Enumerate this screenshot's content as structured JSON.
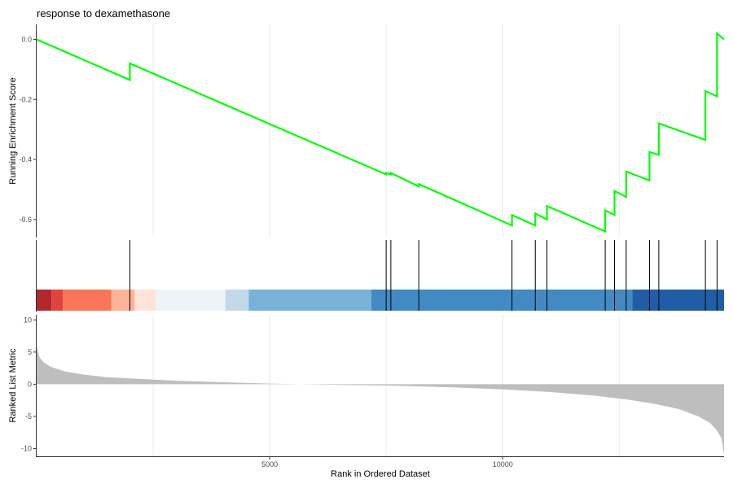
{
  "chart_data": {
    "type": "line",
    "title": "response to dexamethasone",
    "xlabel": "Rank in Ordered Dataset",
    "x_ticks": [
      5000,
      10000
    ],
    "xlim": [
      0,
      14750
    ],
    "panels": {
      "running_score": {
        "ylabel": "Running Enrichment Score",
        "ylim": [
          -0.66,
          0.05
        ],
        "y_ticks": [
          0.0,
          -0.2,
          -0.4,
          -0.6
        ],
        "y_tick_labels": [
          "0.0",
          "-0.2",
          "-0.4",
          "-0.6"
        ],
        "line_color": "#00ff00",
        "series": [
          {
            "x": [
              0,
              2000,
              2000,
              7500,
              7500,
              7600,
              7600,
              8200,
              8200,
              10200,
              10200,
              10700,
              10700,
              10950,
              10950,
              12200,
              12200,
              12400,
              12400,
              12650,
              12650,
              13150,
              13150,
              13350,
              13350,
              14350,
              14350,
              14600,
              14600,
              14750
            ],
            "y": [
              0.0,
              -0.135,
              -0.08,
              -0.45,
              -0.445,
              -0.45,
              -0.445,
              -0.49,
              -0.482,
              -0.62,
              -0.585,
              -0.62,
              -0.58,
              -0.6,
              -0.555,
              -0.64,
              -0.57,
              -0.585,
              -0.505,
              -0.525,
              -0.44,
              -0.47,
              -0.375,
              -0.385,
              -0.28,
              -0.335,
              -0.172,
              -0.19,
              0.02,
              0.0
            ]
          }
        ]
      },
      "hits": {
        "positions": [
          2000,
          7500,
          7600,
          8200,
          10200,
          10700,
          10950,
          12200,
          12400,
          12650,
          13150,
          13350,
          14350,
          14600
        ]
      },
      "rank_color_bar": {
        "segments": [
          {
            "from": 0,
            "to": 320,
            "color": "#b2282c"
          },
          {
            "from": 320,
            "to": 560,
            "color": "#e0453d"
          },
          {
            "from": 560,
            "to": 1600,
            "color": "#fb7559"
          },
          {
            "from": 1600,
            "to": 2100,
            "color": "#fcb397"
          },
          {
            "from": 2100,
            "to": 2550,
            "color": "#fee3d7"
          },
          {
            "from": 2550,
            "to": 4050,
            "color": "#eef3fa"
          },
          {
            "from": 4050,
            "to": 4550,
            "color": "#c2d9ea"
          },
          {
            "from": 4550,
            "to": 7180,
            "color": "#79b2d8"
          },
          {
            "from": 7180,
            "to": 12780,
            "color": "#418ac3"
          },
          {
            "from": 12780,
            "to": 14750,
            "color": "#1f5ea6"
          }
        ]
      },
      "ranked_metric": {
        "ylabel": "Ranked List Metric",
        "ylim": [
          -11.2,
          10.8
        ],
        "y_ticks": [
          10,
          5,
          0,
          -5,
          -10
        ],
        "y_tick_labels": [
          "10",
          "5",
          "0",
          "-5",
          "-10"
        ],
        "fill_color": "#bebebe",
        "x": [
          0,
          60,
          150,
          300,
          600,
          1000,
          1500,
          2000,
          3000,
          4000,
          5000,
          6000,
          7000,
          7500,
          8000,
          9000,
          10000,
          11000,
          12000,
          12700,
          13300,
          13800,
          14200,
          14450,
          14600,
          14700,
          14750
        ],
        "y": [
          6.0,
          4.2,
          3.4,
          2.7,
          2.0,
          1.5,
          1.1,
          0.9,
          0.55,
          0.3,
          0.1,
          -0.05,
          -0.15,
          -0.2,
          -0.3,
          -0.5,
          -0.8,
          -1.2,
          -1.8,
          -2.4,
          -3.1,
          -3.9,
          -5.0,
          -6.0,
          -7.2,
          -8.5,
          -11.0
        ]
      }
    }
  }
}
